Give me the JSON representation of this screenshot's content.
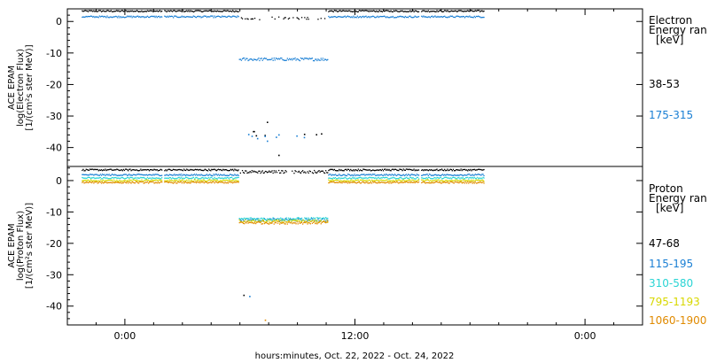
{
  "chart_data": [
    {
      "type": "scatter",
      "panel": "electron",
      "ylabel": [
        "ACE EPAM",
        "log(Electron Flux)",
        "[1/(cm²s ster MeV)]"
      ],
      "ylim": [
        -46,
        4
      ],
      "yticks": [
        0,
        -10,
        -20,
        -30,
        -40
      ],
      "legend_title": [
        "Electron",
        "Energy ran",
        "[keV]"
      ],
      "series": [
        {
          "name": "38-53",
          "color": "#000000",
          "main_level": 3.3,
          "gap_level": 1.0,
          "gap_low": -35.5,
          "gap_extra": [
            -32.0,
            -42.5
          ]
        },
        {
          "name": "175-315",
          "color": "#1a7fd4",
          "main_level": 1.5,
          "gap_level": -12.0,
          "gap_low": -36.5,
          "gap_extra": [
            -38.0,
            -36.0
          ]
        }
      ]
    },
    {
      "type": "scatter",
      "panel": "proton",
      "ylabel": [
        "ACE EPAM",
        "log(Proton Flux)",
        "[1/(cm²s ster MeV)]"
      ],
      "ylim": [
        -46,
        4.5
      ],
      "yticks": [
        0,
        -10,
        -20,
        -30,
        -40
      ],
      "legend_title": [
        "Proton",
        "Energy ran",
        "[keV]"
      ],
      "series": [
        {
          "name": "47-68",
          "color": "#000000",
          "main_level": 3.4,
          "gap_level": 2.8,
          "gap_low": -36.0
        },
        {
          "name": "115-195",
          "color": "#1a7fd4",
          "main_level": 1.8,
          "gap_level": -12.5,
          "gap_low": -37.0
        },
        {
          "name": "310-580",
          "color": "#2ad4d4",
          "main_level": 0.8,
          "gap_level": -12.2,
          "gap_low": null
        },
        {
          "name": "795-1193",
          "color": "#d8d800",
          "main_level": 0.0,
          "gap_level": -13.0,
          "gap_low": null
        },
        {
          "name": "1060-1900",
          "color": "#e08a00",
          "main_level": -0.6,
          "gap_level": -13.4,
          "gap_low": -44.0
        }
      ]
    }
  ],
  "x_axis": {
    "xlabel": "hours:minutes, Oct. 22, 2022 - Oct. 24, 2022",
    "xlim_hours": [
      -6,
      54
    ],
    "ticks": [
      {
        "hour": 0,
        "label": "0:00"
      },
      {
        "hour": 24,
        "label": "12:00"
      },
      {
        "hour": 48,
        "label": "0:00"
      }
    ],
    "data_start_hour": -4.5,
    "data_end_hour": 37.5,
    "gap_start_hour": 11.8,
    "gap_end_hour": 21.2
  }
}
